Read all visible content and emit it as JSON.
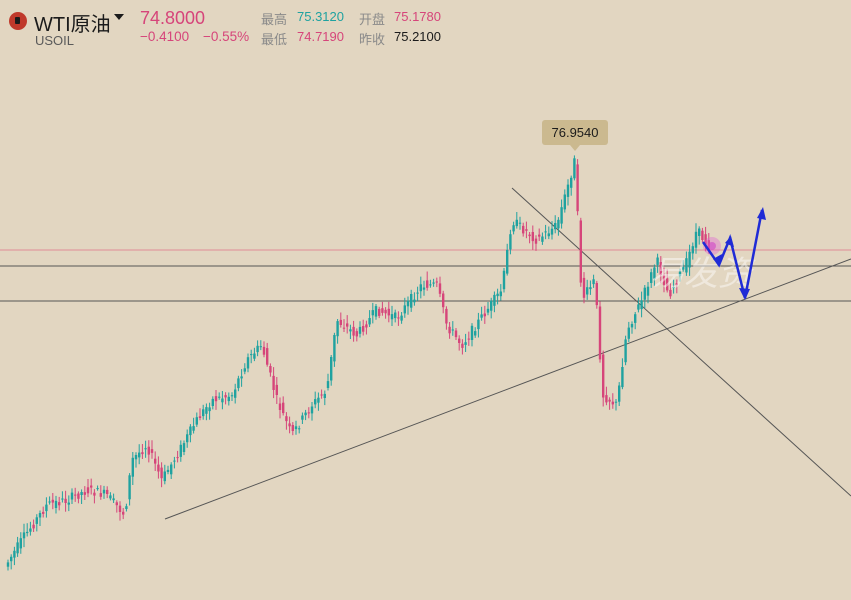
{
  "header": {
    "symbol_name": "WTI原油",
    "symbol_code": "USOIL",
    "last_price": "74.8000",
    "change": "−0.4100",
    "change_pct": "−0.55%",
    "high_label": "最高",
    "high_value": "75.3120",
    "low_label": "最低",
    "low_value": "74.7190",
    "open_label": "开盘",
    "open_value": "75.1780",
    "prev_close_label": "昨收",
    "prev_close_value": "75.2100"
  },
  "peak_label": "76.9540",
  "watermark": "易发资",
  "colors": {
    "background": "#e2d6c1",
    "up": "#1fa2a0",
    "down": "#d6457a",
    "arrows": "#1f2bd6",
    "lines": "#555555"
  },
  "chart_data": {
    "type": "candlestick",
    "peak_value": 76.954,
    "last_value": 74.8,
    "annotations": [
      {
        "kind": "horizontal_line",
        "value": 75.21
      },
      {
        "kind": "horizontal_line",
        "value": 75.05
      },
      {
        "kind": "horizontal_line",
        "value": 74.7
      },
      {
        "kind": "trend_line",
        "direction": "ascending support"
      },
      {
        "kind": "trend_line",
        "direction": "descending from swing high"
      },
      {
        "kind": "projected_path",
        "direction": "down-up-down-up"
      }
    ]
  }
}
